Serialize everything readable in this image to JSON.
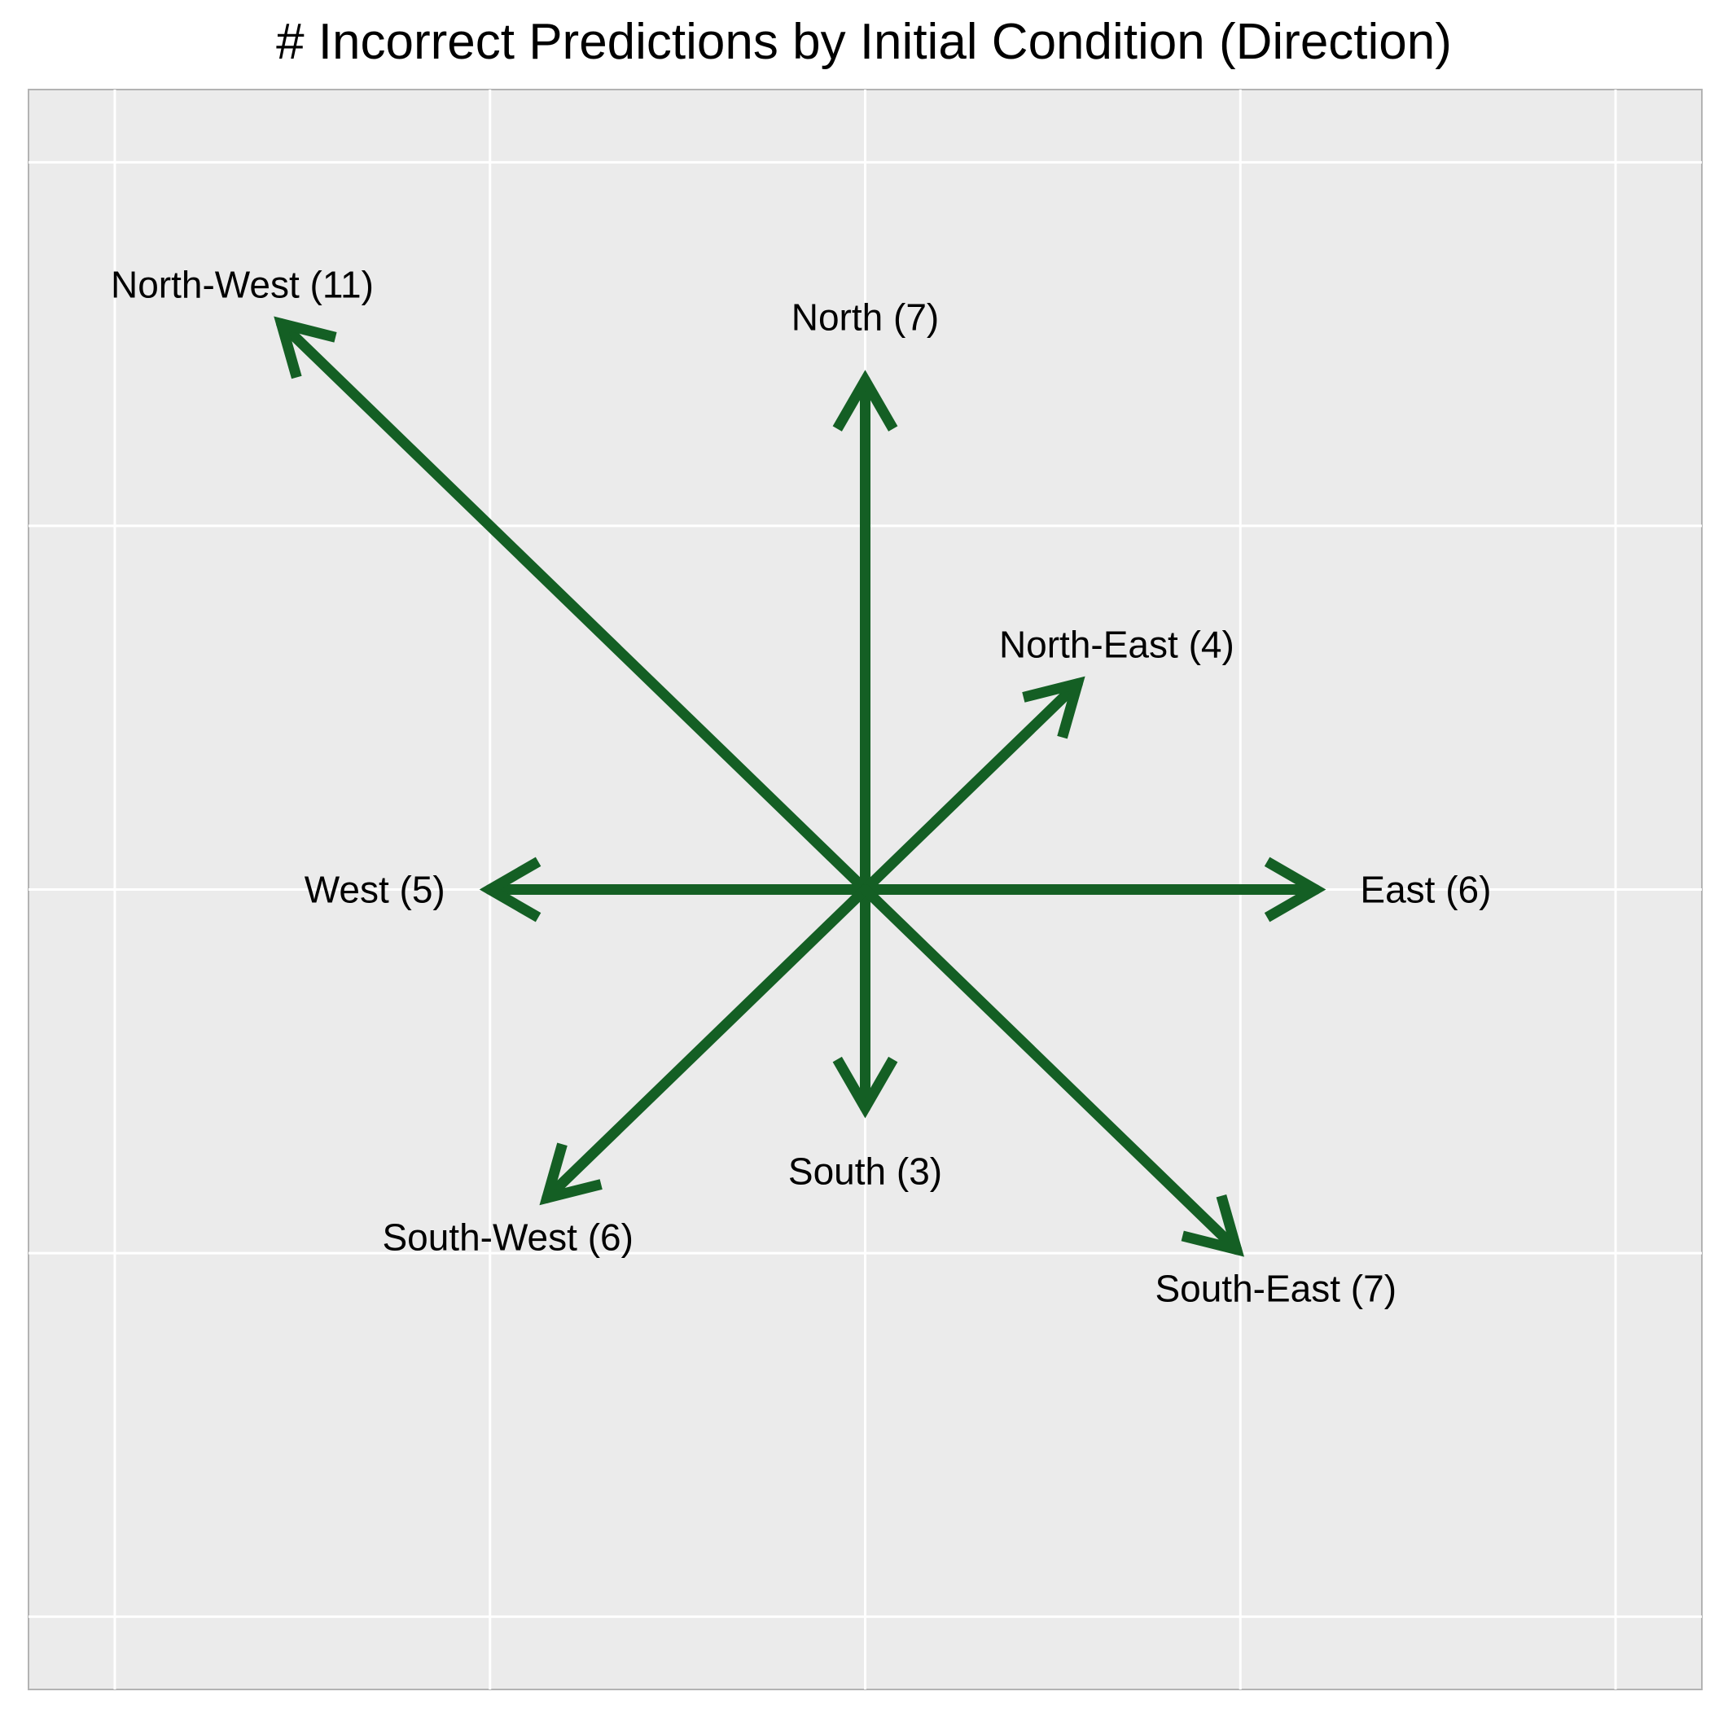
{
  "chart_data": {
    "type": "vector",
    "title": "# Incorrect Predictions by Initial Condition (Direction)",
    "xlabel": "",
    "ylabel": "",
    "xlim": [
      -11.15,
      11.15
    ],
    "ylim": [
      -11.0,
      11.0
    ],
    "x_gridlines": [
      -10,
      -5,
      0,
      5,
      10
    ],
    "y_gridlines": [
      -10,
      -5,
      0,
      5,
      10
    ],
    "grid": true,
    "axis_ticks_visible": false,
    "panel_background": "#EBEBEB",
    "grid_color": "#FFFFFF",
    "arrow_color": "#145F24",
    "origin": [
      0,
      0
    ],
    "arrows": [
      {
        "label": "North-West (11)",
        "direction": "North-West",
        "count": 11,
        "x": -7.78,
        "y": 7.78
      },
      {
        "label": "North (7)",
        "direction": "North",
        "count": 7,
        "x": 0,
        "y": 7
      },
      {
        "label": "North-East (4)",
        "direction": "North-East",
        "count": 4,
        "x": 2.83,
        "y": 2.83
      },
      {
        "label": "West (5)",
        "direction": "West",
        "count": 5,
        "x": -5,
        "y": 0
      },
      {
        "label": "East (6)",
        "direction": "East",
        "count": 6,
        "x": 6,
        "y": 0
      },
      {
        "label": "South (3)",
        "direction": "South",
        "count": 3,
        "x": 0,
        "y": -3
      },
      {
        "label": "South-West (6)",
        "direction": "South-West",
        "count": 6,
        "x": -4.24,
        "y": -4.24
      },
      {
        "label": "South-East (7)",
        "direction": "South-East",
        "count": 7,
        "x": 4.95,
        "y": -4.95
      }
    ]
  }
}
